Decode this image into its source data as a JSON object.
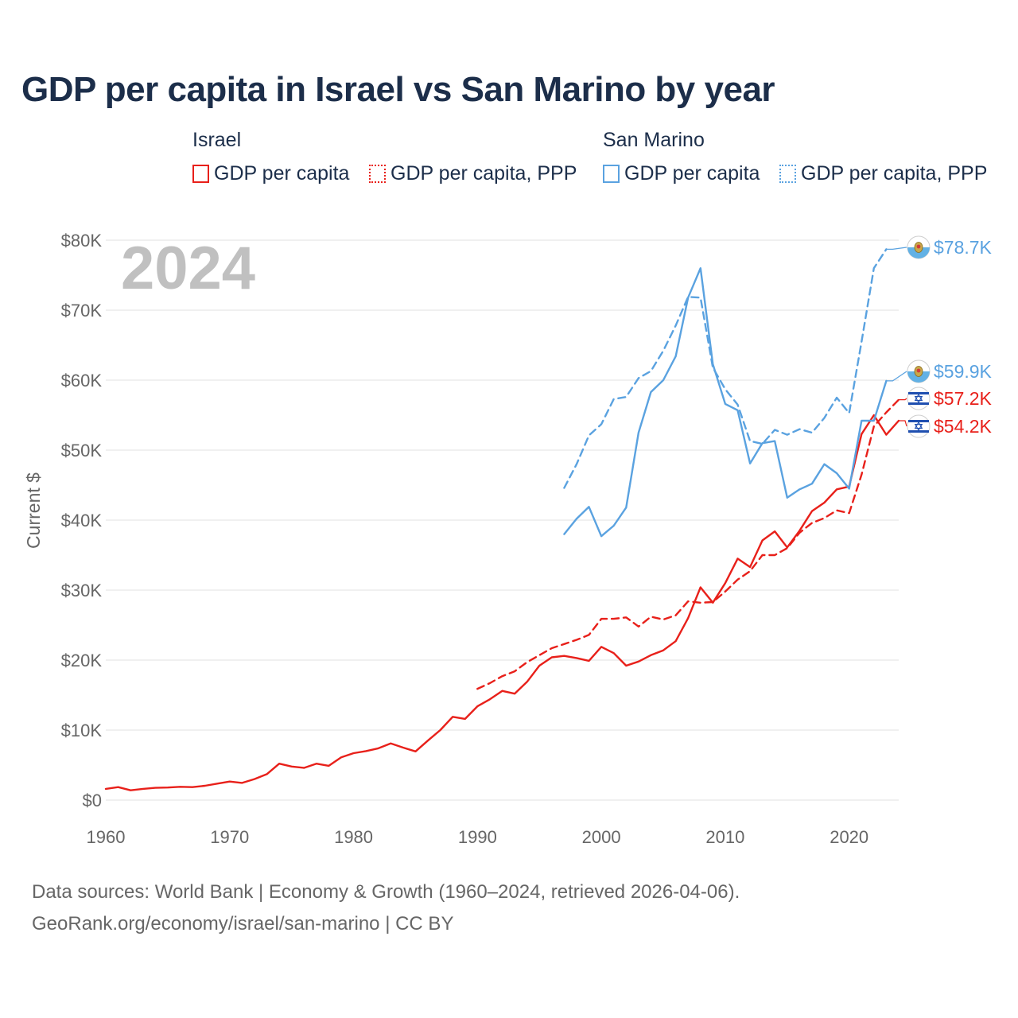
{
  "chart_data": {
    "type": "line",
    "title": "GDP per capita in Israel vs San Marino by year",
    "year_label": "2024",
    "ylabel": "Current $",
    "xlabel": "",
    "xlim": [
      1960,
      2024
    ],
    "ylim": [
      0,
      80000
    ],
    "x_ticks": [
      1960,
      1970,
      1980,
      1990,
      2000,
      2010,
      2020
    ],
    "x_tick_labels": [
      "1960",
      "1970",
      "1980",
      "1990",
      "2000",
      "2010",
      "2020"
    ],
    "y_ticks": [
      0,
      10000,
      20000,
      30000,
      40000,
      50000,
      60000,
      70000,
      80000
    ],
    "y_tick_labels": [
      "$0",
      "$10K",
      "$20K",
      "$30K",
      "$40K",
      "$50K",
      "$60K",
      "$70K",
      "$80K"
    ],
    "grid": true,
    "legend_groups": [
      {
        "name": "Israel",
        "items": [
          {
            "label": "GDP per capita",
            "series": 0
          },
          {
            "label": "GDP per capita, PPP",
            "series": 1
          }
        ]
      },
      {
        "name": "San Marino",
        "items": [
          {
            "label": "GDP per capita",
            "series": 2
          },
          {
            "label": "GDP per capita, PPP",
            "series": 3
          }
        ]
      }
    ],
    "series": [
      {
        "name": "Israel GDP per capita",
        "country": "Israel",
        "color": "#e8201a",
        "dashed": false,
        "end_label": "$54.2K",
        "x": [
          1960,
          1961,
          1962,
          1963,
          1964,
          1965,
          1966,
          1967,
          1968,
          1969,
          1970,
          1971,
          1972,
          1973,
          1974,
          1975,
          1976,
          1977,
          1978,
          1979,
          1980,
          1981,
          1982,
          1983,
          1984,
          1985,
          1986,
          1987,
          1988,
          1989,
          1990,
          1991,
          1992,
          1993,
          1994,
          1995,
          1996,
          1997,
          1998,
          1999,
          2000,
          2001,
          2002,
          2003,
          2004,
          2005,
          2006,
          2007,
          2008,
          2009,
          2010,
          2011,
          2012,
          2013,
          2014,
          2015,
          2016,
          2017,
          2018,
          2019,
          2020,
          2021,
          2022,
          2023,
          2024
        ],
        "values": [
          1600,
          1850,
          1400,
          1600,
          1750,
          1800,
          1900,
          1850,
          2050,
          2350,
          2650,
          2450,
          3000,
          3700,
          5200,
          4800,
          4600,
          5200,
          4900,
          6100,
          6700,
          7000,
          7400,
          8100,
          7500,
          6950,
          8500,
          10000,
          11900,
          11600,
          13400,
          14400,
          15600,
          15200,
          16900,
          19200,
          20400,
          20600,
          20300,
          19900,
          21900,
          21000,
          19200,
          19800,
          20700,
          21400,
          22700,
          26000,
          30400,
          28200,
          31000,
          34500,
          33300,
          37100,
          38400,
          36100,
          38500,
          41300,
          42500,
          44400,
          44800,
          52300,
          55000,
          52200,
          54200
        ]
      },
      {
        "name": "Israel GDP per capita, PPP",
        "country": "Israel",
        "color": "#e8201a",
        "dashed": true,
        "end_label": "$57.2K",
        "x": [
          1990,
          1991,
          1992,
          1993,
          1994,
          1995,
          1996,
          1997,
          1998,
          1999,
          2000,
          2001,
          2002,
          2003,
          2004,
          2005,
          2006,
          2007,
          2008,
          2009,
          2010,
          2011,
          2012,
          2013,
          2014,
          2015,
          2016,
          2017,
          2018,
          2019,
          2020,
          2021,
          2022,
          2023,
          2024
        ],
        "values": [
          15900,
          16700,
          17700,
          18400,
          19700,
          20700,
          21700,
          22300,
          22900,
          23600,
          25900,
          25900,
          26100,
          24800,
          26200,
          25800,
          26400,
          28400,
          28200,
          28300,
          29800,
          31500,
          32700,
          35000,
          35000,
          36000,
          38200,
          39600,
          40300,
          41400,
          41000,
          46500,
          53400,
          55400,
          57200
        ]
      },
      {
        "name": "San Marino GDP per capita",
        "country": "San Marino",
        "color": "#5aa2e0",
        "dashed": false,
        "end_label": "$59.9K",
        "x": [
          1997,
          1998,
          1999,
          2000,
          2001,
          2002,
          2003,
          2004,
          2005,
          2006,
          2007,
          2008,
          2009,
          2010,
          2011,
          2012,
          2013,
          2014,
          2015,
          2016,
          2017,
          2018,
          2019,
          2020,
          2021,
          2022,
          2023
        ],
        "values": [
          38000,
          40200,
          41900,
          37700,
          39200,
          41800,
          52500,
          58300,
          60000,
          63400,
          71800,
          76000,
          62300,
          56600,
          55700,
          48100,
          51000,
          51300,
          43200,
          44400,
          45200,
          48000,
          46700,
          44500,
          54200,
          54200,
          59900
        ]
      },
      {
        "name": "San Marino GDP per capita, PPP",
        "country": "San Marino",
        "color": "#5aa2e0",
        "dashed": true,
        "end_label": "$78.7K",
        "x": [
          1997,
          1998,
          1999,
          2000,
          2001,
          2002,
          2003,
          2004,
          2005,
          2006,
          2007,
          2008,
          2009,
          2010,
          2011,
          2012,
          2013,
          2014,
          2015,
          2016,
          2017,
          2018,
          2019,
          2020,
          2021,
          2022,
          2023
        ],
        "values": [
          44600,
          48000,
          52100,
          53700,
          57300,
          57600,
          60300,
          61300,
          64200,
          67800,
          71900,
          71800,
          61800,
          58700,
          56500,
          51300,
          50900,
          52900,
          52200,
          53000,
          52500,
          54600,
          57500,
          55300,
          65500,
          76000,
          78700
        ]
      }
    ]
  },
  "sources_line": "Data sources: World Bank | Economy & Growth (1960–2024, retrieved 2026-04-06).",
  "attribution_line": "GeoRank.org/economy/israel/san-marino | CC BY",
  "colors": {
    "israel": "#e8201a",
    "san_marino": "#5aa2e0",
    "title": "#1c2e4a",
    "axis_text": "#666666",
    "grid": "#e6e6e6"
  }
}
